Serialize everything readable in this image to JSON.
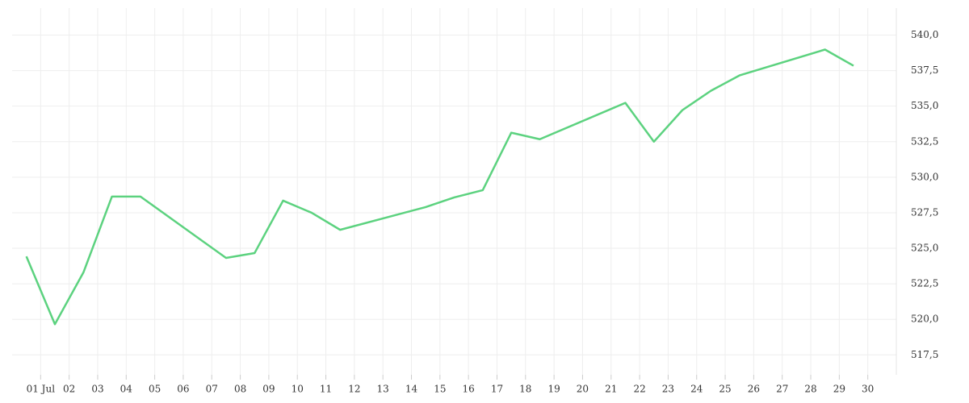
{
  "chart_data": {
    "type": "line",
    "x": [
      0.5,
      1.5,
      2.5,
      3.5,
      4.5,
      7.5,
      8.5,
      9.5,
      10.5,
      11.5,
      14.5,
      15.5,
      16.5,
      17.5,
      18.5,
      21.5,
      22.5,
      23.5,
      24.5,
      25.5,
      28.5,
      29.5
    ],
    "values": [
      524.43,
      519.66,
      523.3,
      528.64,
      528.64,
      524.32,
      524.66,
      528.35,
      527.5,
      526.3,
      527.9,
      528.58,
      529.09,
      533.13,
      532.67,
      535.23,
      532.5,
      534.72,
      536.08,
      537.16,
      538.98,
      537.84
    ],
    "color": "#5cd27f",
    "xlim": [
      0,
      31
    ],
    "xticks": [
      {
        "value": 1,
        "label": "01 Jul"
      },
      {
        "value": 2,
        "label": "02"
      },
      {
        "value": 3,
        "label": "03"
      },
      {
        "value": 4,
        "label": "04"
      },
      {
        "value": 5,
        "label": "05"
      },
      {
        "value": 6,
        "label": "06"
      },
      {
        "value": 7,
        "label": "07"
      },
      {
        "value": 8,
        "label": "08"
      },
      {
        "value": 9,
        "label": "09"
      },
      10,
      11,
      12,
      13,
      14,
      15,
      16,
      17,
      18,
      19,
      20,
      21,
      22,
      23,
      24,
      25,
      26,
      27,
      28,
      29,
      30
    ],
    "ylim": [
      516.1,
      541.9
    ],
    "yticks": [
      {
        "value": 517.5,
        "label": "517,5"
      },
      {
        "value": 520,
        "label": "520,0"
      },
      {
        "value": 522.5,
        "label": "522,5"
      },
      {
        "value": 525,
        "label": "525,0"
      },
      {
        "value": 527.5,
        "label": "527,5"
      },
      {
        "value": 530,
        "label": "530,0"
      },
      {
        "value": 532.5,
        "label": "532,5"
      },
      {
        "value": 535,
        "label": "535,0"
      },
      {
        "value": 537.5,
        "label": "537,5"
      },
      {
        "value": 540,
        "label": "540,0"
      }
    ],
    "grid": true
  }
}
